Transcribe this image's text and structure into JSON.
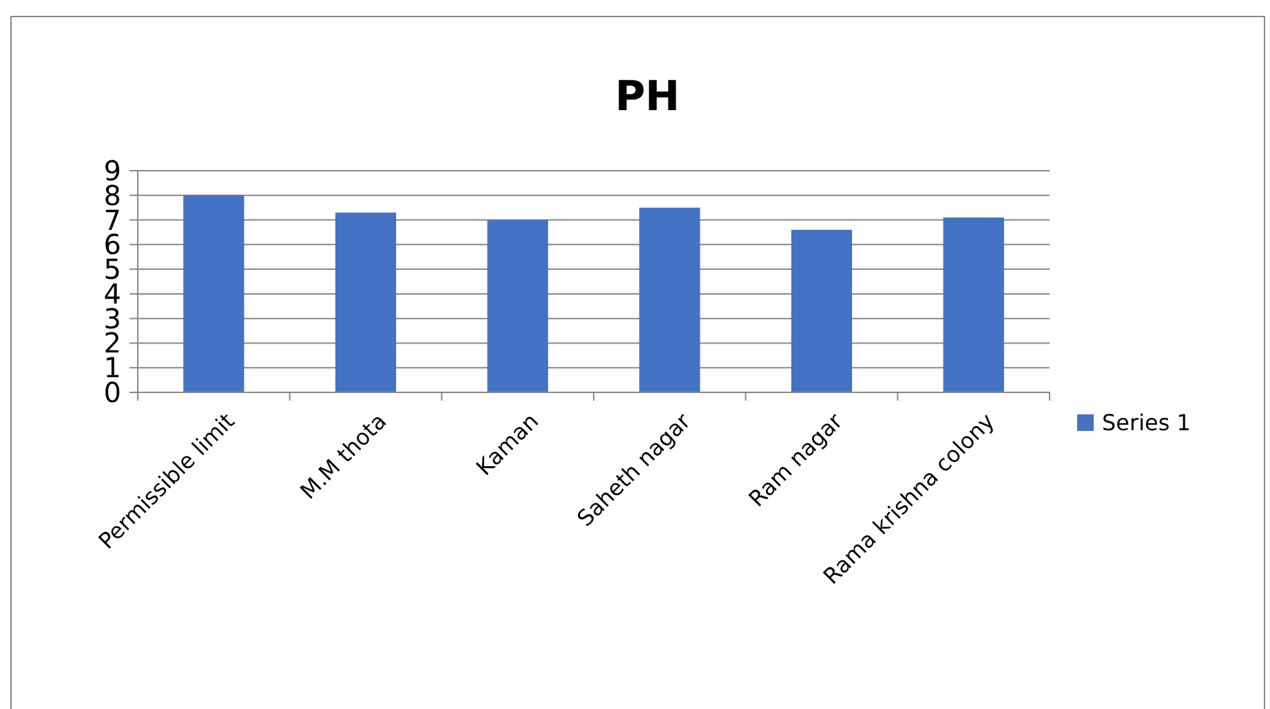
{
  "chart_data": {
    "type": "bar",
    "title": "PH",
    "categories": [
      "Permissible limit",
      "M.M thota",
      "Kaman",
      "Saheth nagar",
      "Ram nagar",
      "Rama krishna colony"
    ],
    "series": [
      {
        "name": "Series 1",
        "color": "#4472c4",
        "values": [
          8,
          7.3,
          7.0,
          7.5,
          6.6,
          7.1
        ]
      }
    ],
    "ylim": [
      0,
      9
    ],
    "yticks": [
      0,
      1,
      2,
      3,
      4,
      5,
      6,
      7,
      8,
      9
    ],
    "grid": "y",
    "legend": "right"
  }
}
